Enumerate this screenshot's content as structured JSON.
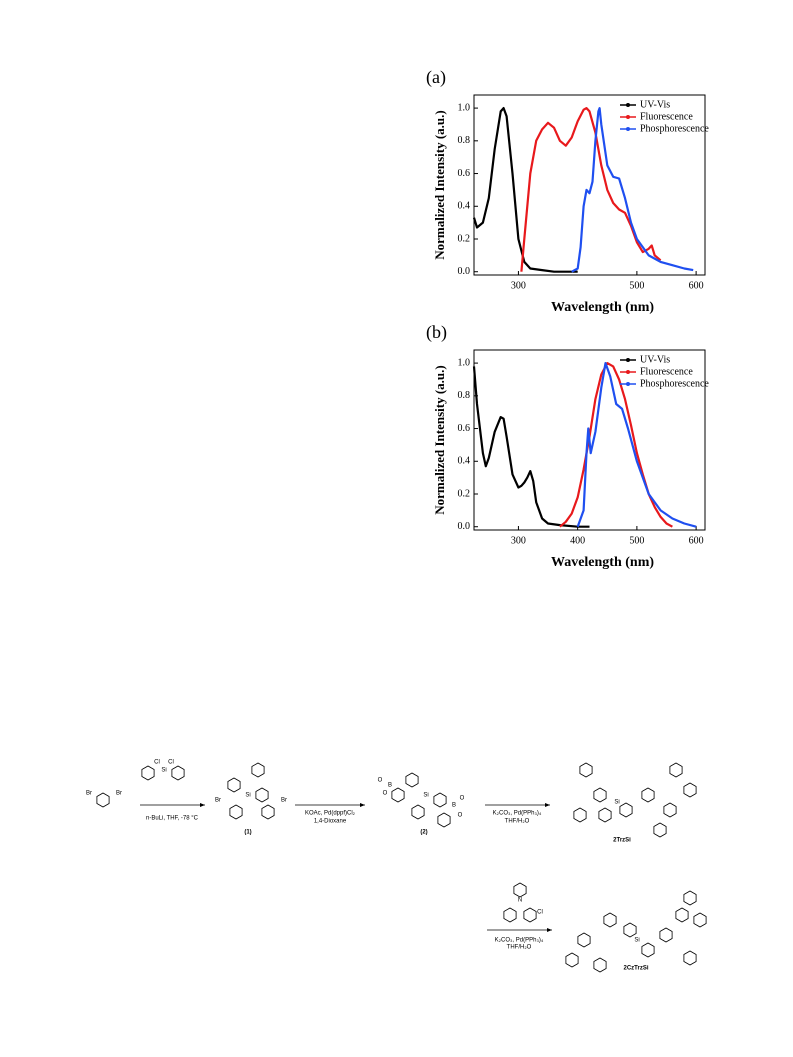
{
  "chart_data": [
    {
      "type": "line",
      "panel_label": "(a)",
      "x_label": "Wavelength (nm)",
      "y_label": "Normalized Intensity (a.u.)",
      "xlim": [
        225,
        615
      ],
      "xticks": [
        300,
        500,
        600
      ],
      "ylim": [
        -0.02,
        1.08
      ],
      "yticks": [
        {
          "value": 0,
          "label": "0.0"
        },
        0.2,
        0.4,
        0.6,
        0.8,
        {
          "value": 1,
          "label": "1.0"
        }
      ],
      "legend": "upper right",
      "series": [
        {
          "name": "UV-Vis",
          "color": "#000000",
          "x": [
            225,
            230,
            240,
            250,
            260,
            270,
            275,
            280,
            290,
            300,
            310,
            320,
            340,
            360,
            380,
            400
          ],
          "values": [
            0.33,
            0.27,
            0.3,
            0.45,
            0.75,
            0.98,
            1.0,
            0.95,
            0.6,
            0.2,
            0.06,
            0.02,
            0.01,
            0.0,
            0.0,
            0.0
          ]
        },
        {
          "name": "Fluorescence",
          "color": "#e8191c",
          "x": [
            305,
            310,
            320,
            330,
            340,
            350,
            360,
            370,
            380,
            390,
            400,
            410,
            415,
            420,
            430,
            440,
            450,
            460,
            470,
            480,
            490,
            500,
            510,
            520,
            525,
            530,
            540
          ],
          "values": [
            0.0,
            0.2,
            0.6,
            0.8,
            0.87,
            0.91,
            0.88,
            0.8,
            0.77,
            0.82,
            0.92,
            0.99,
            1.0,
            0.98,
            0.85,
            0.65,
            0.5,
            0.42,
            0.38,
            0.36,
            0.28,
            0.18,
            0.12,
            0.14,
            0.16,
            0.1,
            0.07
          ]
        },
        {
          "name": "Phosphorescence",
          "color": "#1f4ff0",
          "x": [
            390,
            400,
            405,
            410,
            415,
            420,
            425,
            430,
            435,
            437,
            440,
            450,
            460,
            470,
            480,
            490,
            500,
            520,
            540,
            560,
            580,
            595
          ],
          "values": [
            0.0,
            0.02,
            0.15,
            0.4,
            0.5,
            0.48,
            0.55,
            0.8,
            0.98,
            1.0,
            0.9,
            0.65,
            0.58,
            0.57,
            0.45,
            0.3,
            0.2,
            0.1,
            0.06,
            0.04,
            0.02,
            0.01
          ]
        }
      ]
    },
    {
      "type": "line",
      "panel_label": "(b)",
      "x_label": "Wavelength (nm)",
      "y_label": "Normalized Intensity (a.u.)",
      "xlim": [
        225,
        615
      ],
      "xticks": [
        300,
        400,
        500,
        600
      ],
      "ylim": [
        -0.02,
        1.08
      ],
      "yticks": [
        {
          "value": 0,
          "label": "0.0"
        },
        0.2,
        0.4,
        0.6,
        0.8,
        {
          "value": 1,
          "label": "1.0"
        }
      ],
      "legend": "upper right",
      "series": [
        {
          "name": "UV-Vis",
          "color": "#000000",
          "x": [
            225,
            230,
            240,
            245,
            250,
            260,
            270,
            275,
            280,
            290,
            300,
            305,
            310,
            315,
            320,
            325,
            330,
            340,
            350,
            370,
            400,
            420
          ],
          "values": [
            0.98,
            0.75,
            0.45,
            0.37,
            0.42,
            0.58,
            0.67,
            0.66,
            0.55,
            0.32,
            0.24,
            0.25,
            0.27,
            0.3,
            0.34,
            0.28,
            0.15,
            0.05,
            0.02,
            0.01,
            0.0,
            0.0
          ]
        },
        {
          "name": "Fluorescence",
          "color": "#e8191c",
          "x": [
            370,
            380,
            390,
            400,
            410,
            420,
            430,
            440,
            450,
            460,
            470,
            480,
            490,
            500,
            510,
            520,
            530,
            540,
            550,
            560
          ],
          "values": [
            0.0,
            0.03,
            0.08,
            0.18,
            0.35,
            0.55,
            0.78,
            0.93,
            1.0,
            0.98,
            0.9,
            0.78,
            0.62,
            0.45,
            0.32,
            0.2,
            0.12,
            0.06,
            0.02,
            0.0
          ]
        },
        {
          "name": "Phosphorescence",
          "color": "#1f4ff0",
          "x": [
            400,
            410,
            415,
            418,
            422,
            430,
            440,
            447,
            455,
            465,
            475,
            485,
            500,
            520,
            540,
            560,
            580,
            600
          ],
          "values": [
            0.0,
            0.1,
            0.45,
            0.6,
            0.45,
            0.58,
            0.85,
            1.0,
            0.92,
            0.75,
            0.72,
            0.6,
            0.4,
            0.2,
            0.1,
            0.05,
            0.02,
            0.0
          ]
        }
      ]
    }
  ],
  "scheme": {
    "reagents": [
      "n-BuLi, THF, -78 °C",
      "KOAc, Pd(dppf)Cl₂",
      "1,4-Dioxane",
      "K₂CO₃, Pd(PPh₃)₄",
      "THF/H₂O",
      "K₂CO₃, Pd(PPh₃)₄",
      "THF/H₂O"
    ],
    "compounds": [
      "(1)",
      "(2)",
      "2TrzSi",
      "2CzTrzSi"
    ],
    "atoms": [
      "Br",
      "Br",
      "Cl",
      "Si",
      "Cl",
      "Br",
      "Si",
      "Br",
      "B",
      "O",
      "O",
      "Si",
      "B",
      "O",
      "O",
      "Si",
      "Si",
      "N",
      "Cl"
    ]
  }
}
